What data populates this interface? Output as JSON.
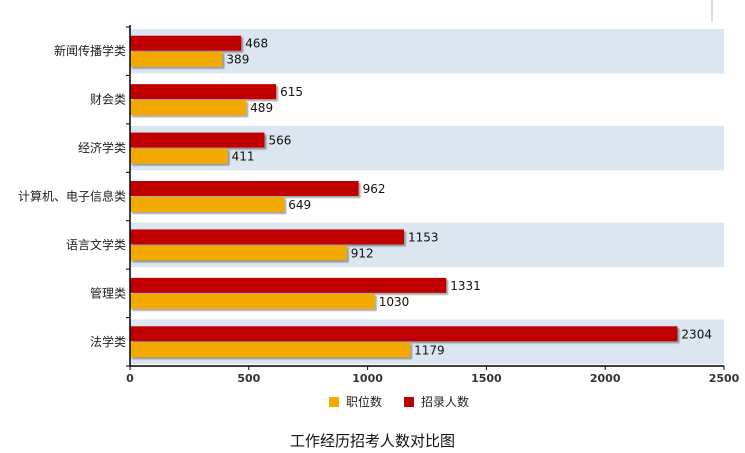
{
  "chart_data": {
    "type": "bar",
    "orientation": "horizontal",
    "title": "",
    "caption": "工作经历招考人数对比图",
    "categories": [
      "新闻传播学类",
      "财会类",
      "经济学类",
      "计算机、电子信息类",
      "语言文学类",
      "管理类",
      "法学类"
    ],
    "series": [
      {
        "name": "招录人数",
        "color": "#c00000",
        "values": [
          468,
          615,
          566,
          962,
          1153,
          1331,
          2304
        ]
      },
      {
        "name": "职位数",
        "color": "#f2a900",
        "values": [
          389,
          489,
          411,
          649,
          912,
          1030,
          1179
        ]
      }
    ],
    "xlim": [
      0,
      2500
    ],
    "xticks": [
      0,
      500,
      1000,
      1500,
      2000,
      2500
    ],
    "xlabel": "",
    "ylabel": "",
    "legend": {
      "placement": "bottom-center",
      "items": [
        {
          "name": "职位数",
          "color": "#f2a900"
        },
        {
          "name": "招录人数",
          "color": "#c00000"
        }
      ]
    },
    "band_color": "#dce6f0"
  }
}
